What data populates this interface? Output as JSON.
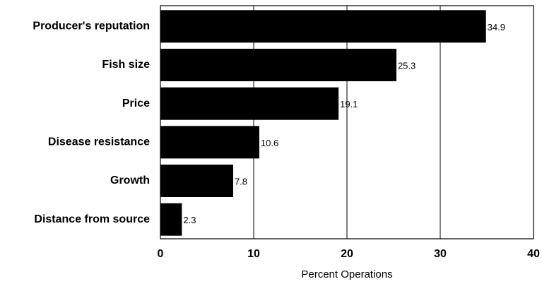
{
  "chart_data": {
    "type": "bar",
    "orientation": "horizontal",
    "categories": [
      "Producer's reputation",
      "Fish size",
      "Price",
      "Disease resistance",
      "Growth",
      "Distance from source"
    ],
    "values": [
      34.9,
      25.3,
      19.1,
      10.6,
      7.8,
      2.3
    ],
    "color": "#000000",
    "x_label": "Percent Operations",
    "xlim": [
      0,
      40
    ],
    "xticks": [
      0,
      10,
      20,
      30,
      40
    ],
    "grid": true
  }
}
